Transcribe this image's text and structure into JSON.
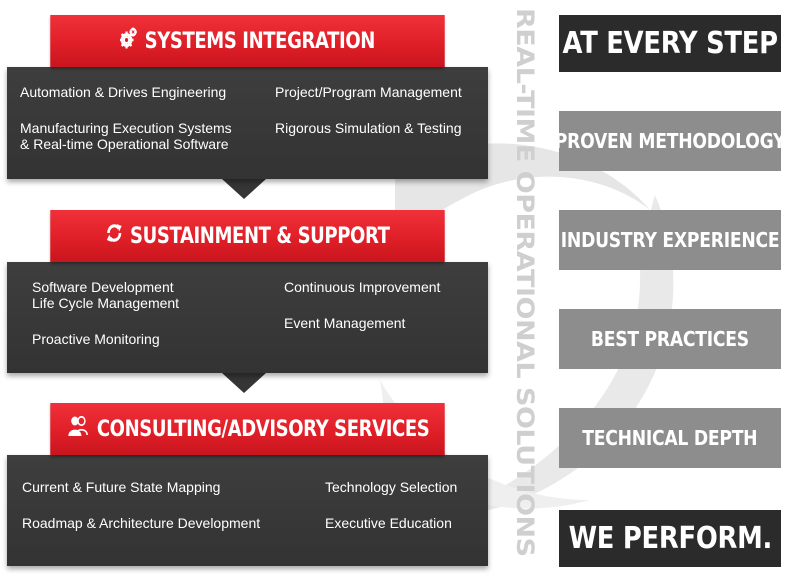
{
  "vertical_label": "REAL-TIME OPERATIONAL SOLUTIONS",
  "panels": [
    {
      "title": "SYSTEMS INTEGRATION",
      "icon": "gears-icon",
      "items": [
        {
          "line1": "Automation & Drives Engineering",
          "line2": ""
        },
        {
          "line1": "Project/Program Management",
          "line2": ""
        },
        {
          "line1": "Manufacturing Execution Systems",
          "line2": "& Real-time Operational Software"
        },
        {
          "line1": "Rigorous Simulation & Testing",
          "line2": ""
        }
      ]
    },
    {
      "title": "SUSTAINMENT & SUPPORT",
      "icon": "refresh-icon",
      "items": [
        {
          "line1": "Software Development",
          "line2": "Life Cycle Management"
        },
        {
          "line1": "Continuous Improvement",
          "line2": ""
        },
        {
          "line1": "Proactive Monitoring",
          "line2": ""
        },
        {
          "line1": "Event Management",
          "line2": ""
        }
      ]
    },
    {
      "title": "CONSULTING/ADVISORY SERVICES",
      "icon": "people-icon",
      "items": [
        {
          "line1": "Current & Future State Mapping",
          "line2": ""
        },
        {
          "line1": "Technology Selection",
          "line2": ""
        },
        {
          "line1": "Roadmap & Architecture Development",
          "line2": ""
        },
        {
          "line1": "Executive Education",
          "line2": ""
        }
      ]
    }
  ],
  "tags": [
    "AT EVERY STEP",
    "PROVEN METHODOLOGY",
    "INDUSTRY EXPERIENCE",
    "BEST PRACTICES",
    "TECHNICAL DEPTH",
    "WE PERFORM."
  ],
  "colors": {
    "header_red": "#e01f28",
    "panel_dark": "#383838",
    "tag_dark": "#2b2b2b",
    "tag_gray": "#8d8d8d",
    "vertical_text": "#cfcfcf"
  }
}
